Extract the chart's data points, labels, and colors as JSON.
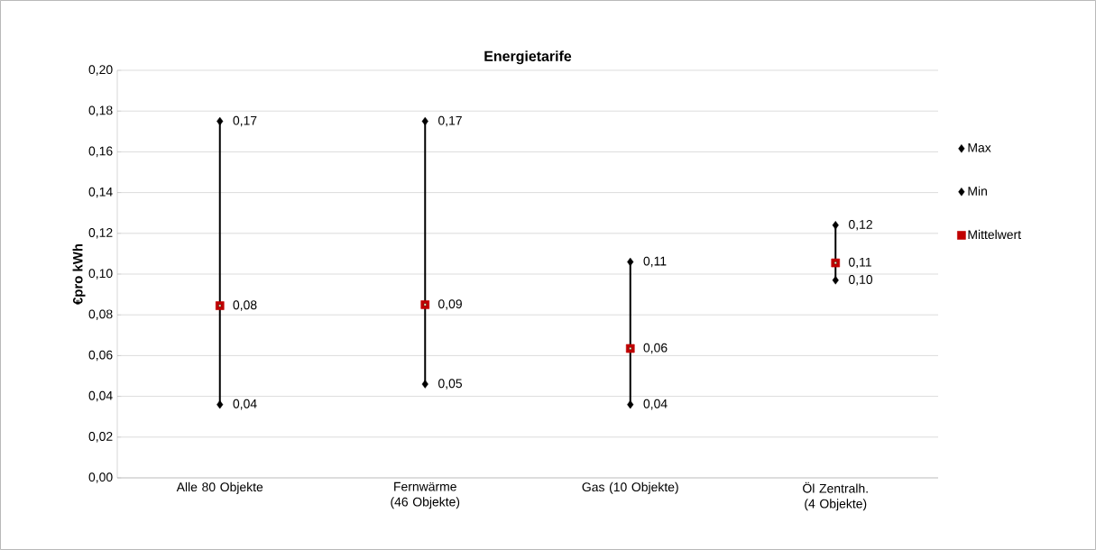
{
  "chart_data": {
    "type": "scatter",
    "title": "Energietarife",
    "ylabel": "€pro kWh",
    "categories": [
      "Alle 80 Objekte",
      "Fernwärme (46 Objekte)",
      "Gas (10 Objekte)",
      "Öl Zentralh. (4 Objekte)"
    ],
    "series": [
      {
        "name": "Max",
        "color": "#000000",
        "marker": "diamond",
        "values": [
          0.175,
          0.175,
          0.106,
          0.124
        ],
        "value_labels": [
          "0,17",
          "0,17",
          "0,11",
          "0,12"
        ]
      },
      {
        "name": "Min",
        "color": "#000000",
        "marker": "diamond",
        "values": [
          0.036,
          0.046,
          0.036,
          0.097
        ],
        "value_labels": [
          "0,04",
          "0,05",
          "0,04",
          "0,10"
        ]
      },
      {
        "name": "Mittelwert",
        "color": "#c00000",
        "marker": "square",
        "values": [
          0.0845,
          0.085,
          0.0635,
          0.1055
        ],
        "value_labels": [
          "0,08",
          "0,09",
          "0,06",
          "0,11"
        ]
      }
    ],
    "ylim": [
      0,
      0.2
    ],
    "yticks": [
      {
        "value": 0,
        "label": "0,00"
      },
      {
        "value": 0.02,
        "label": "0,02"
      },
      {
        "value": 0.04,
        "label": "0,04"
      },
      {
        "value": 0.06,
        "label": "0,06"
      },
      {
        "value": 0.08,
        "label": "0,08"
      },
      {
        "value": 0.1,
        "label": "0,10"
      },
      {
        "value": 0.12,
        "label": "0,12"
      },
      {
        "value": 0.14,
        "label": "0,14"
      },
      {
        "value": 0.16,
        "label": "0,16"
      },
      {
        "value": 0.18,
        "label": "0,18"
      },
      {
        "value": 0.2,
        "label": "0,20"
      }
    ],
    "grid": "y",
    "legend": "right"
  }
}
